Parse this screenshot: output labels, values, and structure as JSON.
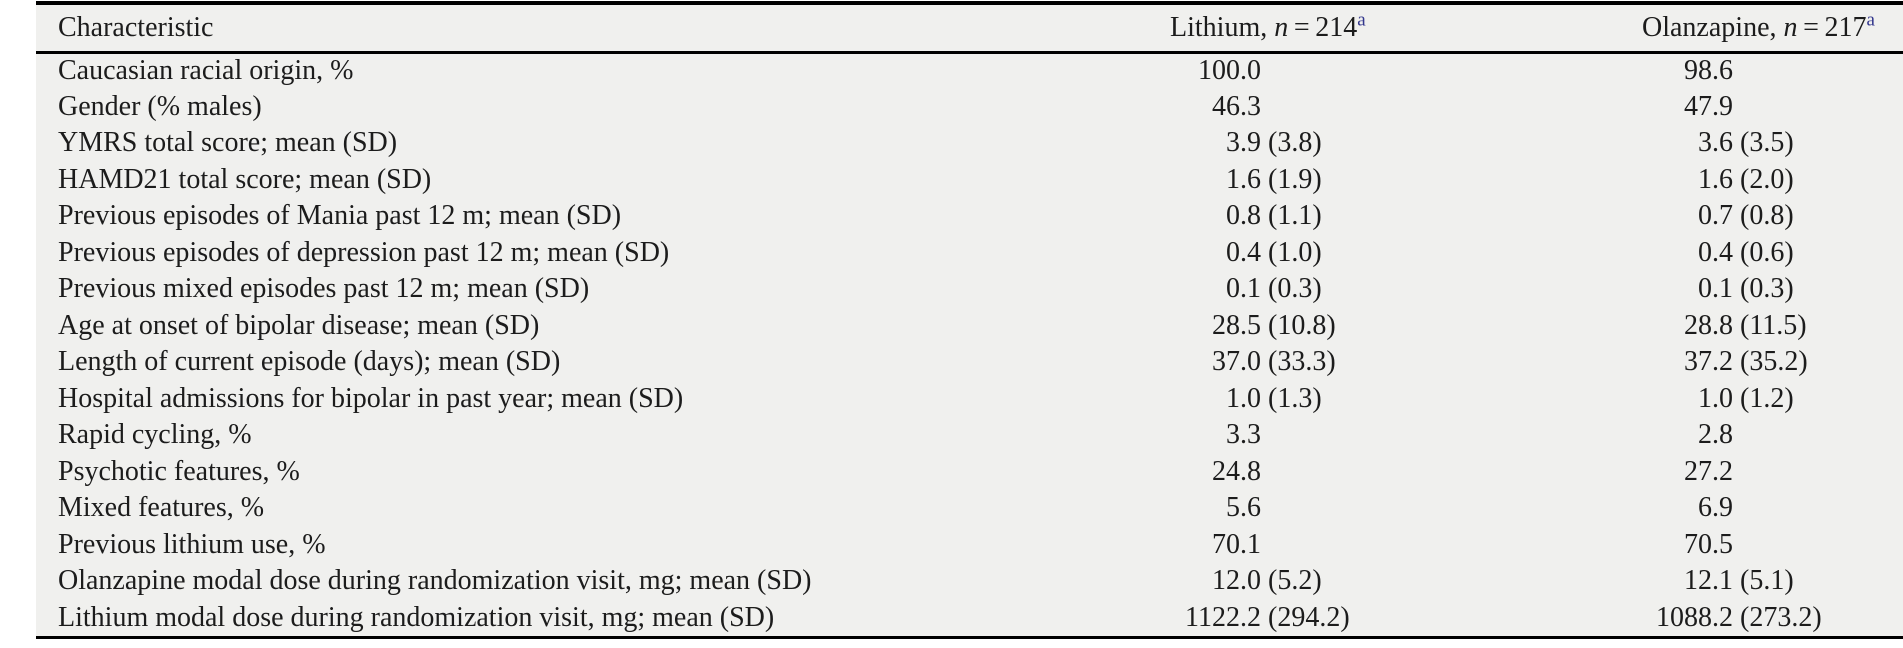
{
  "colors": {
    "table_background": "#f0f0ee",
    "text": "#1c1c1c",
    "rule": "#000000",
    "footnote_link": "#32368c"
  },
  "table": {
    "header": {
      "characteristic": "Characteristic",
      "col_lithium": {
        "prefix": "Lithium, ",
        "n_symbol": "n",
        "equals": " = ",
        "count": "214",
        "footnote": "a"
      },
      "col_olanzapine": {
        "prefix": "Olanzapine, ",
        "n_symbol": "n",
        "equals": " = ",
        "count": "217",
        "footnote": "a"
      }
    },
    "rows": [
      {
        "label": "Caucasian racial origin, %",
        "lithium": "100.0",
        "olanzapine": "98.6"
      },
      {
        "label": "Gender (% males)",
        "lithium": "46.3",
        "olanzapine": "47.9"
      },
      {
        "label": "YMRS total score; mean (SD)",
        "lithium": "3.9 (3.8)",
        "olanzapine": "3.6 (3.5)"
      },
      {
        "label": "HAMD21 total score; mean (SD)",
        "lithium": "1.6 (1.9)",
        "olanzapine": "1.6 (2.0)"
      },
      {
        "label": "Previous episodes of Mania past 12 m; mean (SD)",
        "lithium": "0.8 (1.1)",
        "olanzapine": "0.7 (0.8)"
      },
      {
        "label": "Previous episodes of depression past 12 m; mean (SD)",
        "lithium": "0.4 (1.0)",
        "olanzapine": "0.4 (0.6)"
      },
      {
        "label": "Previous mixed episodes past 12 m; mean (SD)",
        "lithium": "0.1 (0.3)",
        "olanzapine": "0.1 (0.3)"
      },
      {
        "label": "Age at onset of bipolar disease; mean (SD)",
        "lithium": "28.5 (10.8)",
        "olanzapine": "28.8 (11.5)"
      },
      {
        "label": "Length of current episode (days); mean (SD)",
        "lithium": "37.0 (33.3)",
        "olanzapine": "37.2 (35.2)"
      },
      {
        "label": "Hospital admissions for bipolar in past year; mean (SD)",
        "lithium": "1.0 (1.3)",
        "olanzapine": "1.0 (1.2)"
      },
      {
        "label": "Rapid cycling, %",
        "lithium": "3.3",
        "olanzapine": "2.8"
      },
      {
        "label": "Psychotic features, %",
        "lithium": "24.8",
        "olanzapine": "27.2"
      },
      {
        "label": "Mixed features, %",
        "lithium": "5.6",
        "olanzapine": "6.9"
      },
      {
        "label": "Previous lithium use, %",
        "lithium": "70.1",
        "olanzapine": "70.5"
      },
      {
        "label": "Olanzapine modal dose during randomization visit, mg; mean (SD)",
        "lithium": "12.0 (5.2)",
        "olanzapine": "12.1 (5.1)"
      },
      {
        "label": "Lithium modal dose during randomization visit, mg; mean (SD)",
        "lithium": "1122.2 (294.2)",
        "olanzapine": "1088.2 (273.2)"
      }
    ]
  }
}
